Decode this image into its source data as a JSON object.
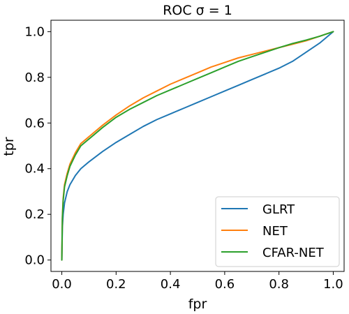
{
  "chart_data": {
    "type": "line",
    "title": "ROC σ = 1",
    "xlabel": "fpr",
    "ylabel": "tpr",
    "xlim": [
      -0.04,
      1.04
    ],
    "ylim": [
      -0.05,
      1.05
    ],
    "x_ticks": [
      "0.0",
      "0.2",
      "0.4",
      "0.6",
      "0.8",
      "1.0"
    ],
    "y_ticks": [
      "0.0",
      "0.2",
      "0.4",
      "0.6",
      "0.8",
      "1.0"
    ],
    "grid": false,
    "legend_position": "lower right",
    "series": [
      {
        "name": "GLRT",
        "color": "#1f77b4",
        "x": [
          0,
          0.002,
          0.005,
          0.01,
          0.02,
          0.03,
          0.05,
          0.07,
          0.1,
          0.15,
          0.2,
          0.25,
          0.3,
          0.35,
          0.4,
          0.45,
          0.5,
          0.55,
          0.6,
          0.65,
          0.7,
          0.75,
          0.8,
          0.85,
          0.9,
          0.95,
          1.0
        ],
        "y": [
          0,
          0.14,
          0.2,
          0.25,
          0.3,
          0.33,
          0.37,
          0.4,
          0.43,
          0.475,
          0.515,
          0.55,
          0.585,
          0.615,
          0.64,
          0.665,
          0.69,
          0.715,
          0.74,
          0.765,
          0.79,
          0.815,
          0.84,
          0.87,
          0.91,
          0.95,
          1.0
        ]
      },
      {
        "name": "NET",
        "color": "#ff7f0e",
        "x": [
          0,
          0.002,
          0.005,
          0.01,
          0.02,
          0.03,
          0.05,
          0.07,
          0.1,
          0.15,
          0.2,
          0.25,
          0.3,
          0.35,
          0.4,
          0.45,
          0.5,
          0.55,
          0.6,
          0.65,
          0.7,
          0.75,
          0.8,
          0.85,
          0.9,
          0.95,
          1.0
        ],
        "y": [
          0,
          0.19,
          0.27,
          0.33,
          0.38,
          0.42,
          0.47,
          0.51,
          0.54,
          0.59,
          0.635,
          0.675,
          0.71,
          0.74,
          0.77,
          0.795,
          0.82,
          0.845,
          0.865,
          0.885,
          0.9,
          0.915,
          0.93,
          0.945,
          0.96,
          0.98,
          1.0
        ]
      },
      {
        "name": "CFAR-NET",
        "color": "#2ca02c",
        "x": [
          0,
          0.002,
          0.005,
          0.01,
          0.02,
          0.03,
          0.05,
          0.07,
          0.1,
          0.15,
          0.2,
          0.25,
          0.3,
          0.35,
          0.4,
          0.45,
          0.5,
          0.55,
          0.6,
          0.65,
          0.7,
          0.75,
          0.8,
          0.85,
          0.9,
          0.95,
          1.0
        ],
        "y": [
          0,
          0.18,
          0.26,
          0.32,
          0.37,
          0.41,
          0.46,
          0.5,
          0.53,
          0.58,
          0.625,
          0.66,
          0.69,
          0.72,
          0.745,
          0.77,
          0.795,
          0.82,
          0.845,
          0.87,
          0.89,
          0.91,
          0.93,
          0.948,
          0.963,
          0.98,
          1.0
        ]
      }
    ]
  }
}
